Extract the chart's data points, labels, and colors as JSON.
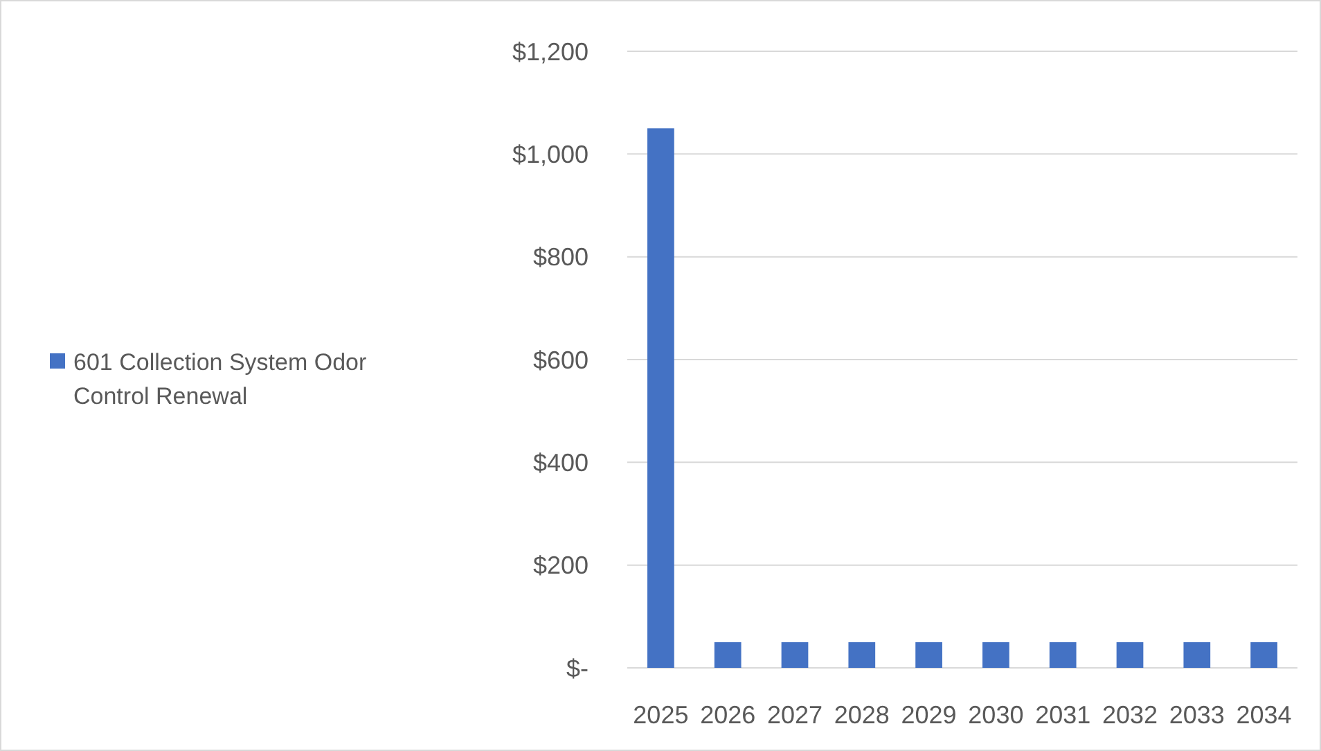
{
  "chart_data": {
    "type": "bar",
    "categories": [
      "2025",
      "2026",
      "2027",
      "2028",
      "2029",
      "2030",
      "2031",
      "2032",
      "2033",
      "2034"
    ],
    "series": [
      {
        "name": "601 Collection System Odor Control Renewal",
        "color": "#4472c4",
        "values": [
          1050,
          50,
          50,
          50,
          50,
          50,
          50,
          50,
          50,
          50
        ]
      }
    ],
    "ylim": [
      0,
      1200
    ],
    "yticks": [
      {
        "value": 0,
        "label": "$-"
      },
      {
        "value": 200,
        "label": "$200"
      },
      {
        "value": 400,
        "label": "$400"
      },
      {
        "value": 600,
        "label": "$600"
      },
      {
        "value": 800,
        "label": "$800"
      },
      {
        "value": 1000,
        "label": "$1,000"
      },
      {
        "value": 1200,
        "label": "$1,200"
      }
    ],
    "grid": "y",
    "legend": "left"
  }
}
